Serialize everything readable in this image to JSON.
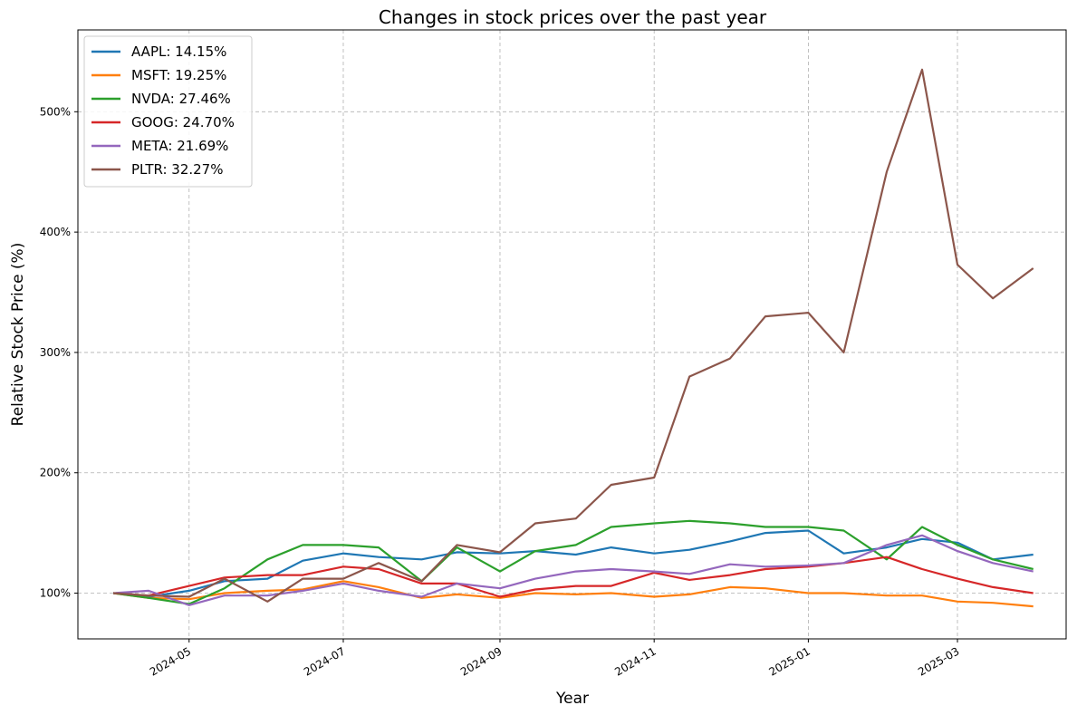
{
  "chart_data": {
    "type": "line",
    "title": "Changes in stock prices over the past year",
    "xlabel": "Year",
    "ylabel": "Relative Stock Price (%)",
    "x_ticks": [
      "2024-05",
      "2024-07",
      "2024-09",
      "2024-11",
      "2025-01",
      "2025-03"
    ],
    "y_ticks": [
      "100%",
      "200%",
      "300%",
      "400%",
      "500%"
    ],
    "y_tick_values": [
      100,
      200,
      300,
      400,
      500
    ],
    "xlim": [
      "2024-03-18",
      "2025-04-13"
    ],
    "ylim": [
      62,
      568
    ],
    "grid": true,
    "legend_position": "top-left",
    "x": [
      "2024-04-01",
      "2024-04-15",
      "2024-05-01",
      "2024-05-15",
      "2024-06-01",
      "2024-06-15",
      "2024-07-01",
      "2024-07-15",
      "2024-08-01",
      "2024-08-15",
      "2024-09-01",
      "2024-09-15",
      "2024-10-01",
      "2024-10-15",
      "2024-11-01",
      "2024-11-15",
      "2024-12-01",
      "2024-12-15",
      "2025-01-01",
      "2025-01-15",
      "2025-02-01",
      "2025-02-15",
      "2025-03-01",
      "2025-03-15",
      "2025-03-31"
    ],
    "series": [
      {
        "name": "AAPL",
        "legend": "AAPL: 14.15%",
        "color": "#1f77b4",
        "values": [
          100,
          97,
          102,
          110,
          112,
          127,
          133,
          130,
          128,
          134,
          133,
          135,
          132,
          138,
          133,
          136,
          143,
          150,
          152,
          133,
          138,
          145,
          142,
          128,
          132
        ]
      },
      {
        "name": "MSFT",
        "legend": "MSFT: 19.25%",
        "color": "#ff7f0e",
        "values": [
          100,
          96,
          95,
          100,
          102,
          103,
          110,
          105,
          96,
          99,
          96,
          100,
          99,
          100,
          97,
          99,
          105,
          104,
          100,
          100,
          98,
          98,
          93,
          92,
          89
        ]
      },
      {
        "name": "NVDA",
        "legend": "NVDA: 27.46%",
        "color": "#2ca02c",
        "values": [
          100,
          96,
          91,
          104,
          128,
          140,
          140,
          138,
          110,
          138,
          118,
          135,
          140,
          155,
          158,
          160,
          158,
          155,
          155,
          152,
          128,
          155,
          140,
          128,
          120
        ]
      },
      {
        "name": "GOOG",
        "legend": "GOOG: 24.70%",
        "color": "#d62728",
        "values": [
          100,
          98,
          106,
          113,
          115,
          115,
          122,
          120,
          108,
          108,
          97,
          103,
          106,
          106,
          117,
          111,
          115,
          120,
          122,
          125,
          130,
          120,
          112,
          105,
          100
        ]
      },
      {
        "name": "META",
        "legend": "META: 21.69%",
        "color": "#9467bd",
        "values": [
          100,
          102,
          90,
          98,
          98,
          102,
          108,
          102,
          97,
          108,
          104,
          112,
          118,
          120,
          118,
          116,
          124,
          122,
          123,
          125,
          140,
          148,
          135,
          125,
          118
        ]
      },
      {
        "name": "PLTR",
        "legend": "PLTR: 32.27%",
        "color": "#8c564b",
        "values": [
          100,
          98,
          97,
          112,
          93,
          112,
          112,
          125,
          110,
          140,
          134,
          158,
          162,
          190,
          196,
          280,
          295,
          330,
          333,
          300,
          450,
          535,
          373,
          345,
          370
        ]
      }
    ]
  }
}
